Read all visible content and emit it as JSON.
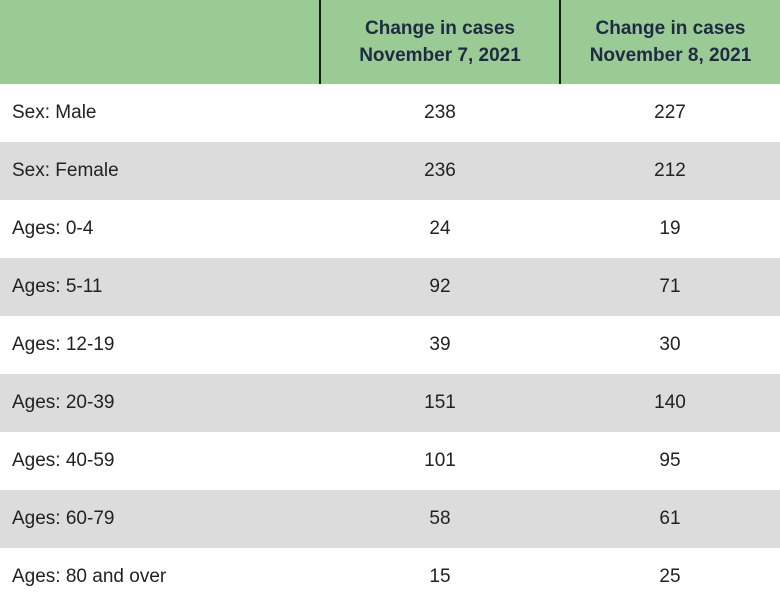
{
  "table": {
    "header": {
      "col0": "",
      "col1_line1": "Change in cases",
      "col1_line2": "November 7, 2021",
      "col2_line1": "Change in cases",
      "col2_line2": "November 8, 2021"
    },
    "rows": [
      {
        "label": "Sex: Male",
        "nov7": "238",
        "nov8": "227"
      },
      {
        "label": "Sex: Female",
        "nov7": "236",
        "nov8": "212"
      },
      {
        "label": "Ages: 0-4",
        "nov7": "24",
        "nov8": "19"
      },
      {
        "label": "Ages: 5-11",
        "nov7": "92",
        "nov8": "71"
      },
      {
        "label": "Ages: 12-19",
        "nov7": "39",
        "nov8": "30"
      },
      {
        "label": "Ages: 20-39",
        "nov7": "151",
        "nov8": "140"
      },
      {
        "label": "Ages: 40-59",
        "nov7": "101",
        "nov8": "95"
      },
      {
        "label": "Ages: 60-79",
        "nov7": "58",
        "nov8": "61"
      },
      {
        "label": "Ages: 80 and over",
        "nov7": "15",
        "nov8": "25"
      }
    ]
  },
  "colors": {
    "header_bg": "#9bcb94",
    "row_shade": "#dcdcdc",
    "row_plain": "#ffffff"
  }
}
